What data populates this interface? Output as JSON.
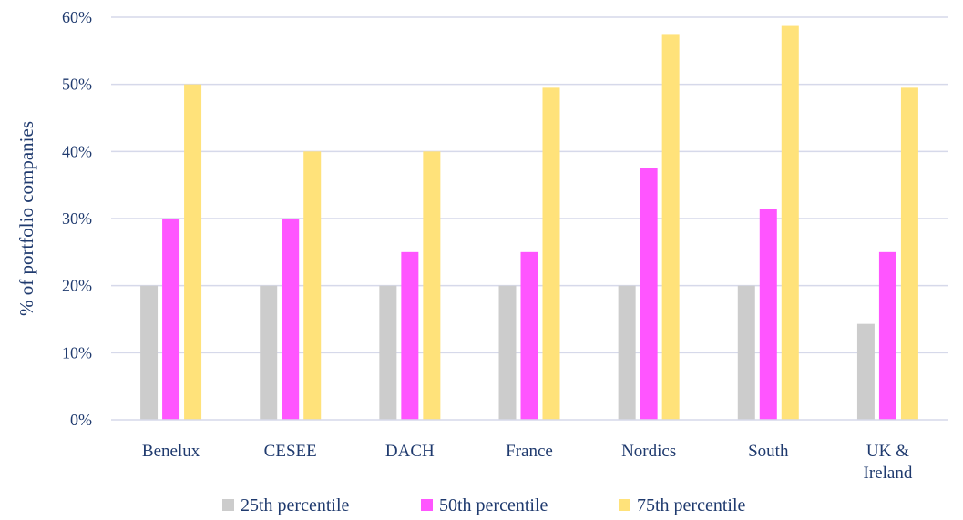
{
  "chart_data": {
    "type": "bar",
    "title": "",
    "xlabel": "",
    "ylabel": "% of portfolio companies",
    "ylim": [
      0,
      60
    ],
    "yticks": [
      "0%",
      "10%",
      "20%",
      "30%",
      "40%",
      "50%",
      "60%"
    ],
    "grid": true,
    "legend_position": "bottom",
    "categories": [
      [
        "Benelux"
      ],
      [
        "CESEE"
      ],
      [
        "DACH"
      ],
      [
        "France"
      ],
      [
        "Nordics"
      ],
      [
        "South"
      ],
      [
        "UK &",
        "Ireland"
      ]
    ],
    "series": [
      {
        "name": "25th percentile",
        "color": "#cccccc",
        "values": [
          20,
          20,
          20,
          20,
          20,
          20,
          14.3
        ]
      },
      {
        "name": "50th percentile",
        "color": "#ff55ff",
        "values": [
          30,
          30,
          25,
          25,
          37.5,
          31.4,
          25
        ]
      },
      {
        "name": "75th percentile",
        "color": "#ffe27a",
        "values": [
          50,
          40,
          40,
          49.5,
          57.5,
          58.7,
          49.5
        ]
      }
    ]
  }
}
